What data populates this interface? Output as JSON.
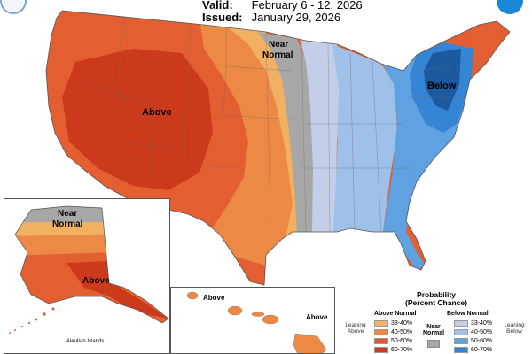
{
  "header": {
    "valid_key": "Valid:",
    "valid_value": "February 6 - 12, 2026",
    "issued_key": "Issued:",
    "issued_value": "January 29, 2026"
  },
  "map": {
    "labels": {
      "conus_above": "Above",
      "conus_near_1": "Near",
      "conus_near_2": "Normal",
      "conus_below": "Below",
      "ak_near_1": "Near",
      "ak_near_2": "Normal",
      "ak_above": "Above",
      "hi_above_1": "Above",
      "hi_above_2": "Above"
    },
    "aleutian": "Aleutian Islands"
  },
  "legend": {
    "title_1": "Probability",
    "title_2": "(Percent Chance)",
    "above_head": "Above Normal",
    "below_head": "Below Normal",
    "near_head_1": "Near",
    "near_head_2": "Normal",
    "leaning_above_1": "Leaning",
    "leaning_above_2": "Above",
    "leaning_below_1": "Leaning",
    "leaning_below_2": "Below",
    "above": [
      {
        "label": "33-40%",
        "color": "#f5b36b"
      },
      {
        "label": "40-50%",
        "color": "#ec8a45"
      },
      {
        "label": "50-60%",
        "color": "#df5a2c"
      },
      {
        "label": "60-70%",
        "color": "#cc3a1c"
      }
    ],
    "below": [
      {
        "label": "33-40%",
        "color": "#c3cfe9"
      },
      {
        "label": "40-50%",
        "color": "#9fc0e8"
      },
      {
        "label": "50-60%",
        "color": "#5ea2e2"
      },
      {
        "label": "60-70%",
        "color": "#3585d4"
      }
    ],
    "near_color": "#a7a7a7"
  }
}
